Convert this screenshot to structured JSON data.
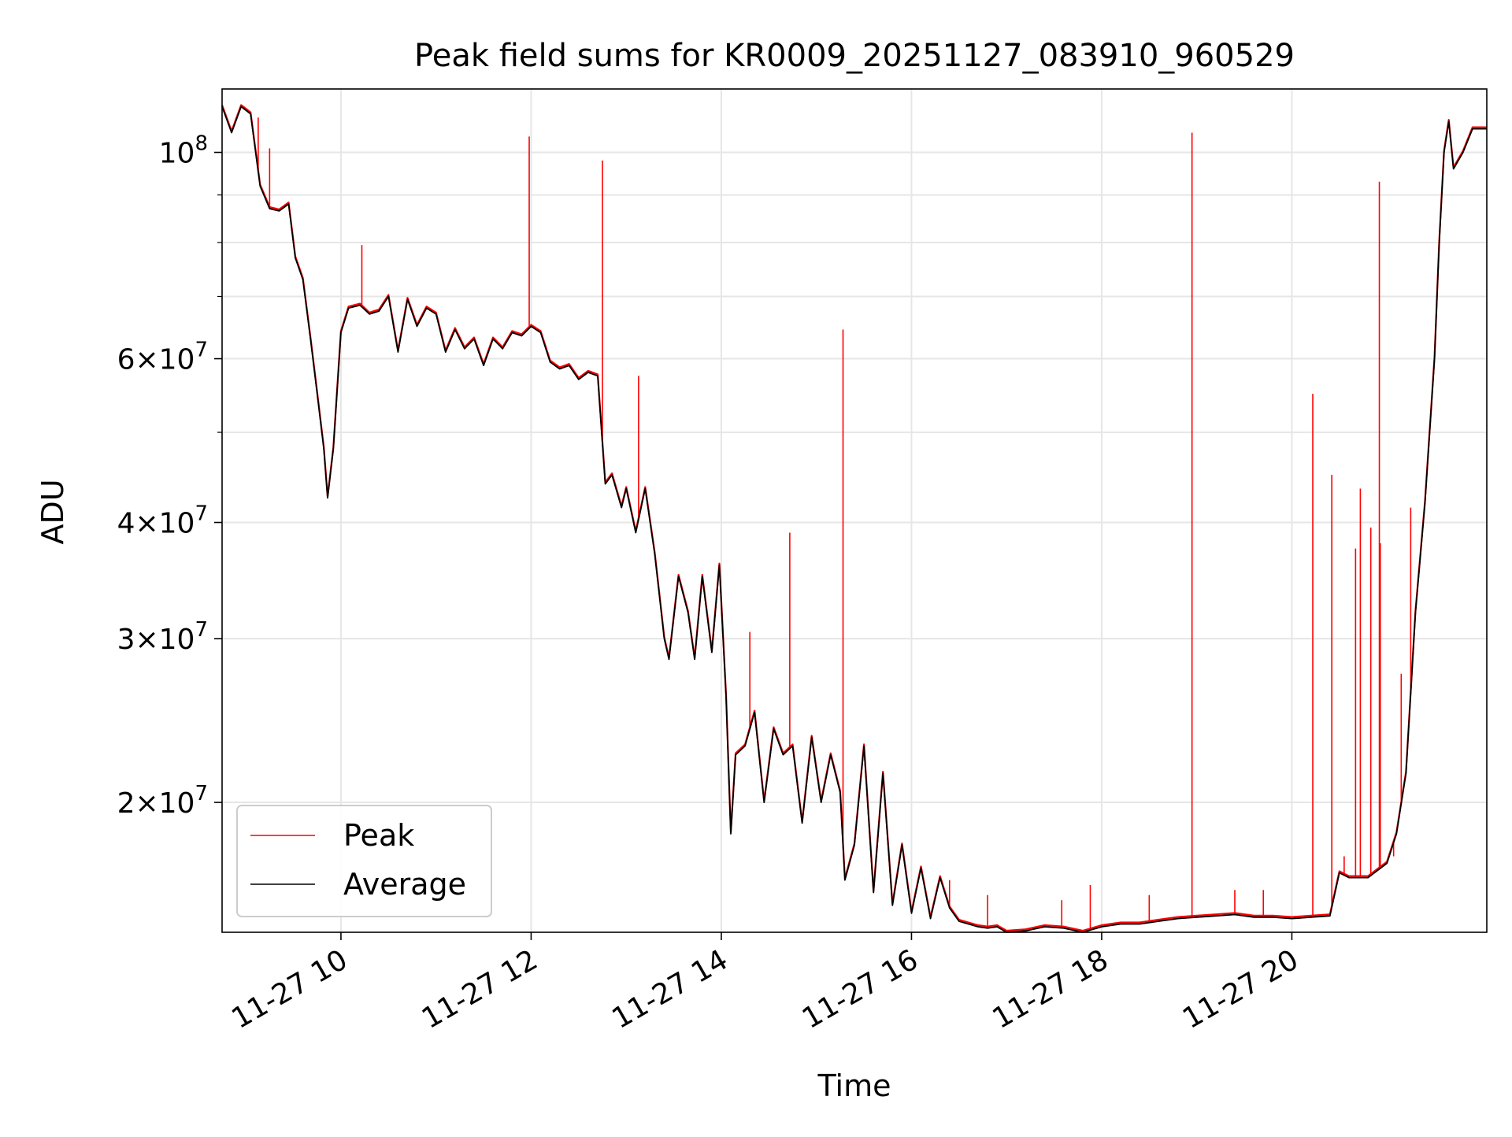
{
  "chart_data": {
    "type": "line",
    "title": "Peak field sums for KR0009_20251127_083910_960529",
    "xlabel": "Time",
    "ylabel": "ADU",
    "x_ticks": [
      "11-27 10",
      "11-27 12",
      "11-27 14",
      "11-27 16",
      "11-27 18",
      "11-27 20"
    ],
    "x_tick_hours": [
      10,
      12,
      14,
      16,
      18,
      20
    ],
    "xlim_hours": [
      8.75,
      22.05
    ],
    "y_scale": "log",
    "ylim": [
      14500000,
      117000000
    ],
    "y_major_ticks": [
      {
        "value": 20000000,
        "mant": "2",
        "exp": "7",
        "sci": true
      },
      {
        "value": 30000000,
        "mant": "3",
        "exp": "7",
        "sci": true
      },
      {
        "value": 40000000,
        "mant": "4",
        "exp": "7",
        "sci": true
      },
      {
        "value": 60000000,
        "mant": "6",
        "exp": "7",
        "sci": true
      },
      {
        "value": 100000000,
        "mant": "10",
        "exp": "8",
        "sci": false
      }
    ],
    "y_minor_ticks": [
      50000000,
      70000000,
      80000000,
      90000000
    ],
    "grid": true,
    "legend_position": "lower-left",
    "series": [
      {
        "name": "Peak",
        "color": "#ff0000",
        "spikes": [
          [
            9.13,
            109000000
          ],
          [
            9.25,
            101000000
          ],
          [
            10.22,
            79500000
          ],
          [
            11.98,
            104000000
          ],
          [
            12.75,
            98000000
          ],
          [
            13.13,
            57500000
          ],
          [
            14.3,
            30500000
          ],
          [
            14.72,
            39000000
          ],
          [
            15.28,
            64500000
          ],
          [
            16.4,
            16500000
          ],
          [
            16.8,
            15900000
          ],
          [
            17.58,
            15700000
          ],
          [
            17.88,
            16300000
          ],
          [
            18.5,
            15900000
          ],
          [
            18.95,
            105000000
          ],
          [
            19.4,
            16100000
          ],
          [
            19.7,
            16100000
          ],
          [
            20.22,
            55000000
          ],
          [
            20.42,
            45000000
          ],
          [
            20.55,
            17500000
          ],
          [
            20.67,
            37500000
          ],
          [
            20.72,
            43500000
          ],
          [
            20.83,
            39500000
          ],
          [
            20.92,
            93000000
          ],
          [
            20.93,
            38000000
          ],
          [
            21.07,
            17500000
          ],
          [
            21.15,
            27500000
          ],
          [
            21.25,
            41500000
          ]
        ]
      },
      {
        "name": "Average",
        "color": "#000000",
        "x_hours": [
          8.75,
          8.85,
          8.95,
          9.05,
          9.15,
          9.25,
          9.35,
          9.45,
          9.52,
          9.6,
          9.68,
          9.75,
          9.82,
          9.86,
          9.92,
          10.0,
          10.08,
          10.2,
          10.3,
          10.4,
          10.5,
          10.6,
          10.7,
          10.8,
          10.9,
          11.0,
          11.1,
          11.2,
          11.3,
          11.4,
          11.5,
          11.6,
          11.7,
          11.8,
          11.9,
          12.0,
          12.1,
          12.2,
          12.3,
          12.4,
          12.5,
          12.6,
          12.7,
          12.78,
          12.85,
          12.95,
          13.0,
          13.1,
          13.2,
          13.3,
          13.4,
          13.45,
          13.55,
          13.65,
          13.72,
          13.8,
          13.9,
          13.98,
          14.05,
          14.1,
          14.15,
          14.25,
          14.35,
          14.45,
          14.55,
          14.65,
          14.75,
          14.85,
          14.95,
          15.05,
          15.15,
          15.25,
          15.3,
          15.4,
          15.5,
          15.6,
          15.7,
          15.8,
          15.9,
          16.0,
          16.1,
          16.2,
          16.3,
          16.4,
          16.5,
          16.6,
          16.7,
          16.8,
          16.9,
          17.0,
          17.2,
          17.4,
          17.6,
          17.8,
          18.0,
          18.2,
          18.4,
          18.6,
          18.8,
          19.0,
          19.2,
          19.4,
          19.6,
          19.8,
          20.0,
          20.2,
          20.4,
          20.5,
          20.6,
          20.8,
          21.0,
          21.1,
          21.2,
          21.3,
          21.4,
          21.5,
          21.55,
          21.6,
          21.65,
          21.7,
          21.8,
          21.9,
          22.05
        ],
        "values": [
          112000000,
          105000000,
          112000000,
          110000000,
          92000000,
          87000000,
          86500000,
          88000000,
          77000000,
          73000000,
          63000000,
          55000000,
          48000000,
          42500000,
          48000000,
          64000000,
          68000000,
          68500000,
          67000000,
          67500000,
          70000000,
          61000000,
          69500000,
          65000000,
          68000000,
          67000000,
          61000000,
          64500000,
          61500000,
          63000000,
          59000000,
          63000000,
          61500000,
          64000000,
          63500000,
          65000000,
          64000000,
          59500000,
          58500000,
          59000000,
          57000000,
          58000000,
          57500000,
          44000000,
          45000000,
          41500000,
          43500000,
          39000000,
          43500000,
          37000000,
          30000000,
          28500000,
          35000000,
          32000000,
          28500000,
          35000000,
          29000000,
          36000000,
          26000000,
          18500000,
          22500000,
          23000000,
          25000000,
          20000000,
          24000000,
          22500000,
          23000000,
          19000000,
          23500000,
          20000000,
          22500000,
          20500000,
          16500000,
          18000000,
          23000000,
          16000000,
          21500000,
          15500000,
          18000000,
          15200000,
          17000000,
          15000000,
          16600000,
          15400000,
          14900000,
          14800000,
          14700000,
          14650000,
          14700000,
          14500000,
          14550000,
          14700000,
          14650000,
          14500000,
          14700000,
          14800000,
          14800000,
          14900000,
          15000000,
          15050000,
          15100000,
          15150000,
          15050000,
          15050000,
          15000000,
          15050000,
          15100000,
          16800000,
          16600000,
          16600000,
          17200000,
          18500000,
          21500000,
          32000000,
          42000000,
          60000000,
          80000000,
          100000000,
          108000000,
          96000000,
          100000000,
          106000000,
          106000000
        ]
      }
    ]
  }
}
